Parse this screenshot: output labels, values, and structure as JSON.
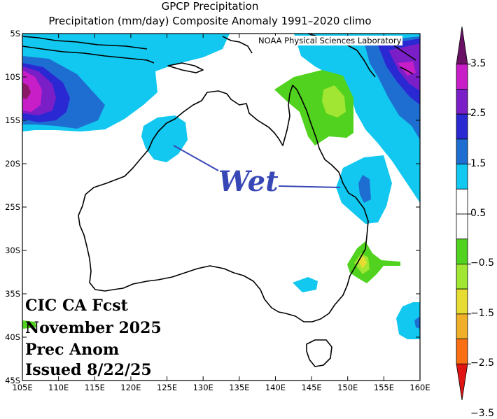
{
  "title_line1": "GPCP Precipitation",
  "title_line2": "Precipitation (mm/day) Composite Anomaly 1991–2020 climo",
  "credit": "NOAA Physical Sciences Laboratory",
  "annotation": "Wet",
  "forecast": {
    "line1": "CIC CA Fcst",
    "line2": "November 2025",
    "line3": "Prec Anom",
    "line4": "Issued 8/22/25"
  },
  "map": {
    "lon_ticks": [
      "105E",
      "110E",
      "115E",
      "120E",
      "125E",
      "130E",
      "135E",
      "140E",
      "145E",
      "150E",
      "155E",
      "160E"
    ],
    "lat_ticks": [
      "5S",
      "10S",
      "15S",
      "20S",
      "25S",
      "30S",
      "35S",
      "40S",
      "45S"
    ],
    "lon_range": [
      105,
      160
    ],
    "lat_range": [
      -45,
      -5
    ]
  },
  "colorbar": {
    "labels": [
      "3.5",
      "2.5",
      "1.5",
      "0.5",
      "−0.5",
      "−1.5",
      "−2.5",
      "−3.5"
    ],
    "colors": [
      "#6a1166",
      "#c81ec8",
      "#7a1ec8",
      "#2a28d2",
      "#1e6ed2",
      "#12c8f0",
      "#ffffff",
      "#ffffff",
      "#50d21e",
      "#a0e632",
      "#e6dc32",
      "#f0af28",
      "#fa6e14",
      "#e11414"
    ]
  }
}
